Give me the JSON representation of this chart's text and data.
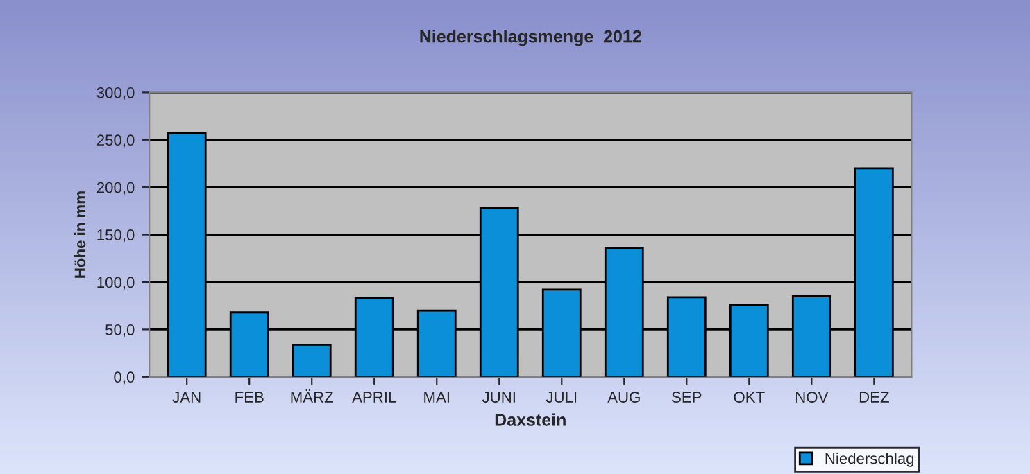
{
  "chart_data": {
    "type": "bar",
    "title": "Niederschlagsmenge  2012",
    "xlabel": "Daxstein",
    "ylabel": "Höhe in mm",
    "categories": [
      "JAN",
      "FEB",
      "MÄRZ",
      "APRIL",
      "MAI",
      "JUNI",
      "JULI",
      "AUG",
      "SEP",
      "OKT",
      "NOV",
      "DEZ"
    ],
    "series": [
      {
        "name": "Niederschlag",
        "color": "#0a8fd8",
        "values": [
          257,
          68,
          34,
          83,
          70,
          178,
          92,
          136,
          84,
          76,
          85,
          220
        ]
      }
    ],
    "ylim": [
      0,
      300
    ],
    "yticks": [
      {
        "value": 0,
        "label": "0,0"
      },
      {
        "value": 50,
        "label": "50,0"
      },
      {
        "value": 100,
        "label": "100,0"
      },
      {
        "value": 150,
        "label": "150,0"
      },
      {
        "value": 200,
        "label": "200,0"
      },
      {
        "value": 250,
        "label": "250,0"
      },
      {
        "value": 300,
        "label": "300,0"
      }
    ],
    "grid": "y",
    "legend": "bottom right"
  }
}
